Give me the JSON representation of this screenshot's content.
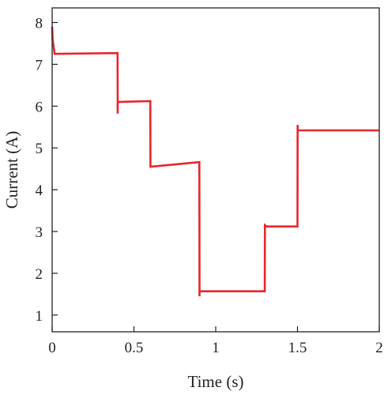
{
  "chart_data": {
    "type": "line",
    "title": "",
    "xlabel": "Time (s)",
    "ylabel": "Current (A)",
    "xlim": [
      0,
      2
    ],
    "ylim": [
      0.6,
      8.35
    ],
    "xticks": [
      0,
      0.5,
      1,
      1.5,
      2
    ],
    "xtick_labels": [
      "0",
      "0.5",
      "1",
      "1.5",
      "2"
    ],
    "yticks": [
      1,
      2,
      3,
      4,
      5,
      6,
      7,
      8
    ],
    "ytick_labels": [
      "1",
      "2",
      "3",
      "4",
      "5",
      "6",
      "7",
      "8"
    ],
    "grid": false,
    "legend": "none",
    "series": [
      {
        "color": "#e8262b",
        "x": [
          0,
          0.003,
          0.015,
          0.4,
          0.401,
          0.4,
          0.402,
          0.6,
          0.601,
          0.9,
          0.901,
          0.902,
          1.3,
          1.301,
          1.31,
          1.5,
          1.501,
          1.502,
          2.0
        ],
        "y": [
          7.9,
          7.6,
          7.25,
          7.27,
          5.82,
          6.05,
          6.1,
          6.12,
          4.55,
          4.66,
          1.45,
          1.57,
          1.57,
          3.15,
          3.12,
          3.12,
          5.55,
          5.42,
          5.42
        ]
      }
    ]
  }
}
